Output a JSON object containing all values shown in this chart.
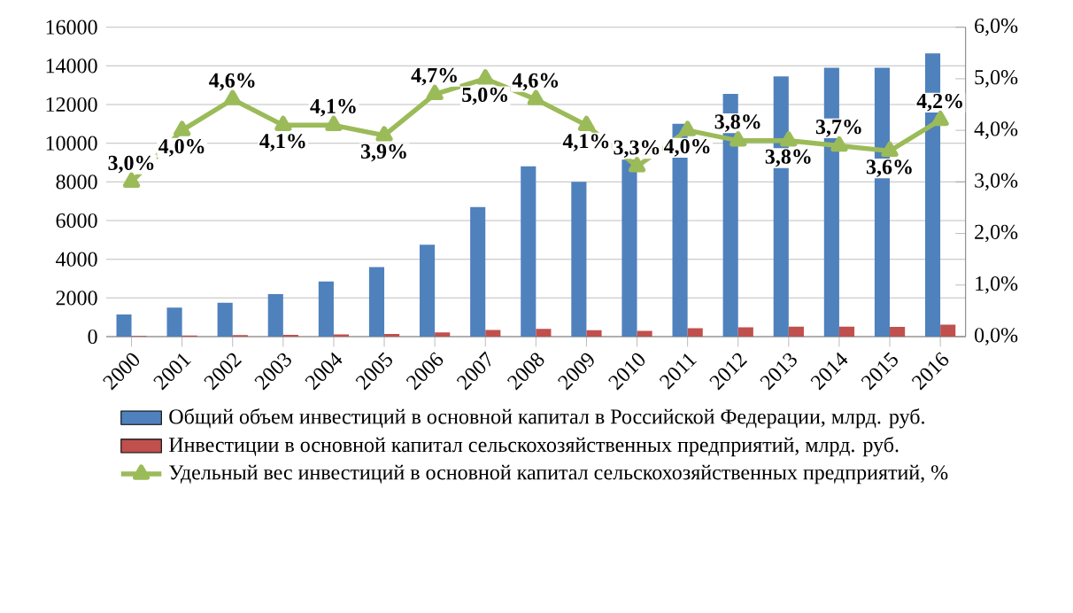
{
  "chart_data": {
    "type": "bar",
    "categories": [
      "2000",
      "2001",
      "2002",
      "2003",
      "2004",
      "2005",
      "2006",
      "2007",
      "2008",
      "2009",
      "2010",
      "2011",
      "2012",
      "2013",
      "2014",
      "2015",
      "2016"
    ],
    "series": [
      {
        "name": "Общий объем инвестиций в основной капитал в Российской Федерации, млрд. руб.",
        "color": "#4f81bd",
        "values": [
          1150,
          1500,
          1750,
          2200,
          2850,
          3600,
          4750,
          6700,
          8800,
          8000,
          9150,
          11000,
          12550,
          13450,
          13900,
          13900,
          14650
        ]
      },
      {
        "name": "Инвестиции в основной капитал сельскохозяйственных предприятий, млрд. руб.",
        "color": "#c0504d",
        "values": [
          30,
          60,
          80,
          90,
          120,
          140,
          220,
          340,
          400,
          330,
          300,
          440,
          480,
          510,
          510,
          500,
          620
        ]
      },
      {
        "name": "Удельный вес инвестиций в основной капитал сельскохозяйственных предприятий, %",
        "color": "#9bbb59",
        "type": "line",
        "axis": "y2",
        "marker": "triangle",
        "values": [
          3.0,
          4.0,
          4.6,
          4.1,
          4.1,
          3.9,
          4.7,
          5.0,
          4.6,
          4.1,
          3.3,
          4.0,
          3.8,
          3.8,
          3.7,
          3.6,
          4.2
        ],
        "value_labels": [
          "3,0%",
          "4,0%",
          "4,6%",
          "4,1%",
          "4,1%",
          "3,9%",
          "4,7%",
          "5,0%",
          "4,6%",
          "4,1%",
          "3,3%",
          "4,0%",
          "3,8%",
          "3,8%",
          "3,7%",
          "3,6%",
          "4,2%"
        ]
      }
    ],
    "ylim": [
      0,
      16000
    ],
    "yticks": [
      0,
      2000,
      4000,
      6000,
      8000,
      10000,
      12000,
      14000,
      16000
    ],
    "y2lim": [
      0,
      6
    ],
    "y2ticks": [
      {
        "value": 0,
        "label": "0,0%"
      },
      {
        "value": 1,
        "label": "1,0%"
      },
      {
        "value": 2,
        "label": "2,0%"
      },
      {
        "value": 3,
        "label": "3,0%"
      },
      {
        "value": 4,
        "label": "4,0%"
      },
      {
        "value": 5,
        "label": "5,0%"
      },
      {
        "value": 6,
        "label": "6,0%"
      }
    ],
    "grid": "y",
    "legend": "bottom"
  }
}
